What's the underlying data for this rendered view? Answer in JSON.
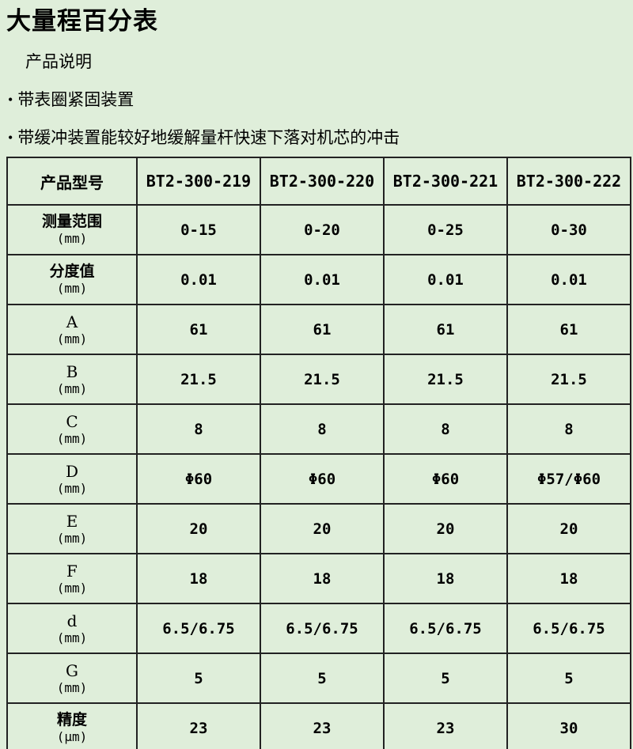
{
  "page": {
    "title": "大量程百分表",
    "section_heading": "产品说明",
    "bullet_char": "•",
    "bullets": [
      "带表圈紧固装置",
      "带缓冲装置能较好地缓解量杆快速下落对机芯的冲击"
    ]
  },
  "table": {
    "header": {
      "label": "产品型号",
      "models": [
        "BT2-300-219",
        "BT2-300-220",
        "BT2-300-221",
        "BT2-300-222"
      ]
    },
    "rows": [
      {
        "label": "测量范围",
        "unit": "(mm)",
        "values": [
          "0-15",
          "0-20",
          "0-25",
          "0-30"
        ]
      },
      {
        "label": "分度值",
        "unit": "(mm)",
        "values": [
          "0.01",
          "0.01",
          "0.01",
          "0.01"
        ]
      },
      {
        "label": "A",
        "unit": "(mm)",
        "values": [
          "61",
          "61",
          "61",
          "61"
        ]
      },
      {
        "label": "B",
        "unit": "(mm)",
        "values": [
          "21.5",
          "21.5",
          "21.5",
          "21.5"
        ]
      },
      {
        "label": "C",
        "unit": "(mm)",
        "values": [
          "8",
          "8",
          "8",
          "8"
        ]
      },
      {
        "label": "D",
        "unit": "(mm)",
        "values": [
          "Φ60",
          "Φ60",
          "Φ60",
          "Φ57/Φ60"
        ]
      },
      {
        "label": "E",
        "unit": "(mm)",
        "values": [
          "20",
          "20",
          "20",
          "20"
        ]
      },
      {
        "label": "F",
        "unit": "(mm)",
        "values": [
          "18",
          "18",
          "18",
          "18"
        ]
      },
      {
        "label": "d",
        "unit": "(mm)",
        "values": [
          "6.5/6.75",
          "6.5/6.75",
          "6.5/6.75",
          "6.5/6.75"
        ]
      },
      {
        "label": "G",
        "unit": "(mm)",
        "values": [
          "5",
          "5",
          "5",
          "5"
        ]
      },
      {
        "label": "精度",
        "unit": "(μm)",
        "values": [
          "23",
          "23",
          "23",
          "30"
        ]
      }
    ]
  },
  "colors": {
    "background": "#dfeeda",
    "table_border": "#222222",
    "text": "#000000"
  }
}
